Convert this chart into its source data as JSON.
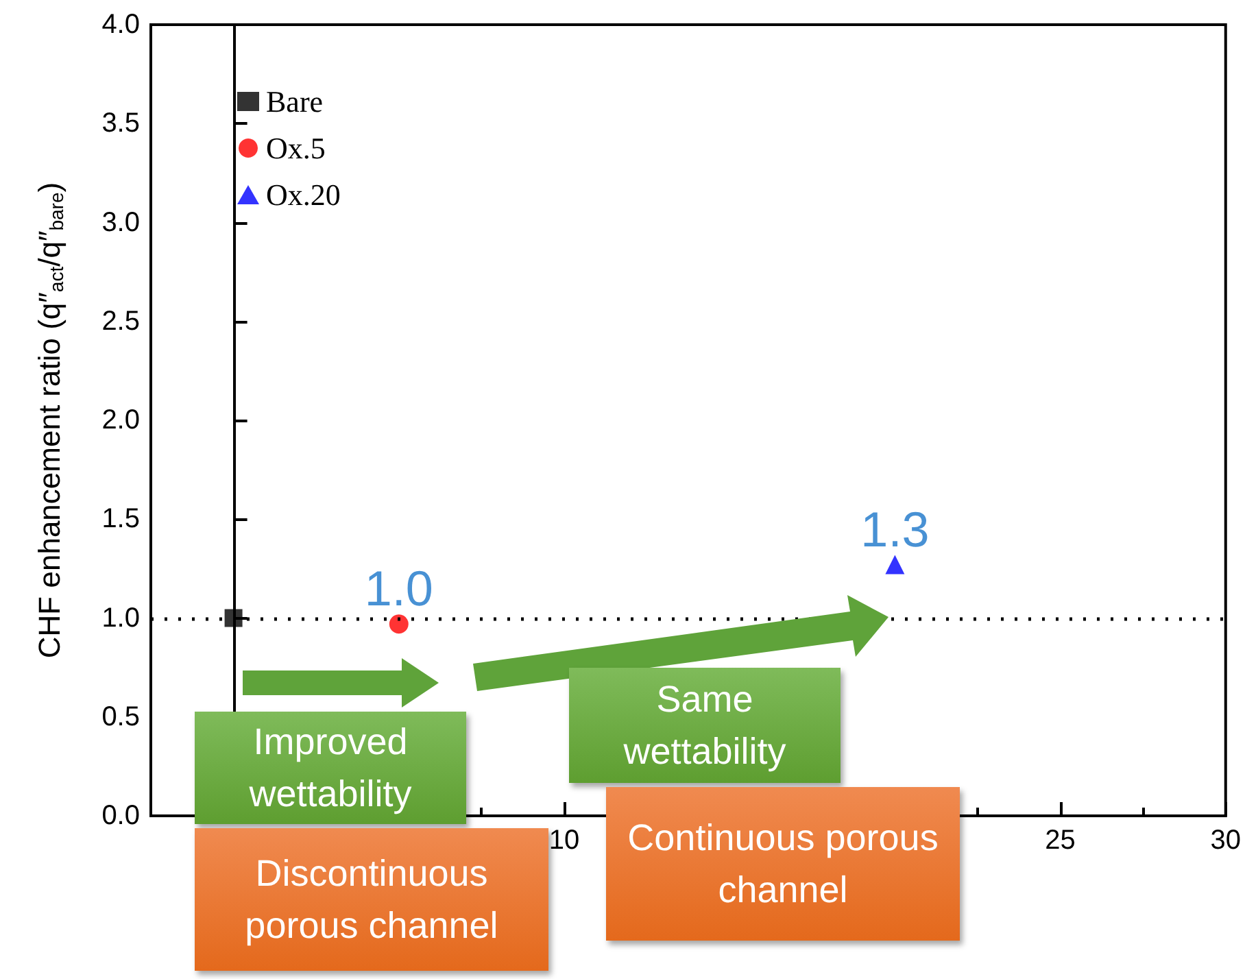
{
  "chart_data": {
    "type": "scatter",
    "ylabel": "CHF enhancement ratio (q″$_{act}$/q″$_{bare}$)",
    "xlim": [
      -2.5,
      30
    ],
    "xticks": [
      {
        "value": 0,
        "label": null
      },
      {
        "value": 5,
        "label": null
      },
      10,
      {
        "value": 15,
        "label": null
      },
      {
        "value": 20,
        "label": null
      },
      25,
      30
    ],
    "ylim": [
      0,
      4
    ],
    "yticks": [
      {
        "value": 0,
        "label": "0.0"
      },
      0.5,
      {
        "value": 1,
        "label": "1.0"
      },
      1.5,
      {
        "value": 2,
        "label": "2.0"
      },
      2.5,
      {
        "value": 3,
        "label": "3.0"
      },
      3.5,
      {
        "value": 4,
        "label": "4.0"
      }
    ],
    "series": [
      {
        "name": "Bare",
        "color": "#000000",
        "marker": "square",
        "x": [
          0
        ],
        "values": [
          1.0
        ]
      },
      {
        "name": "Ox.5",
        "color": "#ff0000",
        "marker": "circle",
        "x": [
          5
        ],
        "values": [
          0.97
        ]
      },
      {
        "name": "Ox.20",
        "color": "#0000ff",
        "marker": "triangle",
        "x": [
          20
        ],
        "values": [
          1.27
        ]
      }
    ],
    "ref_lines": [
      {
        "axis": "y",
        "value": 1,
        "color": "#000000",
        "line_style": "dotted"
      }
    ],
    "annotations": [
      {
        "text": "1.0",
        "x": 5,
        "y": 0.97
      },
      {
        "text": "1.3",
        "x": 20,
        "y": 1.27
      },
      "Improved wettability",
      "Discontinuous porous channel",
      "Same wettability",
      "Continuous porous channel"
    ],
    "grid": false,
    "legend": "top left"
  }
}
